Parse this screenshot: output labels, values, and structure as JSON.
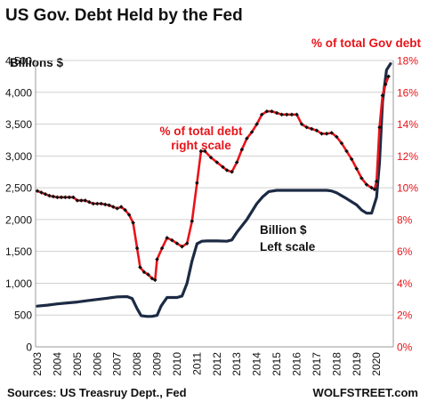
{
  "chart_data": {
    "type": "line",
    "title": "US Gov. Debt Held by the Fed",
    "left_axis_label": "Billions $",
    "right_axis_label": "% of total Gov debt",
    "source": "Sources: US Treasruy Dept., Fed",
    "brand": "WOLFSTREET.com",
    "annotations": {
      "pct_label_line1": "% of total debt",
      "pct_label_line2": "right scale",
      "billions_label_line1": "Billion $",
      "billions_label_line2": "Left scale"
    },
    "left_ylim": [
      0,
      4500
    ],
    "left_ticks": [
      "0",
      "500",
      "1,000",
      "1,500",
      "2,000",
      "2,500",
      "3,000",
      "3,500",
      "4,000",
      "4,500"
    ],
    "right_ylim": [
      0,
      18
    ],
    "right_ticks": [
      "0%",
      "2%",
      "4%",
      "6%",
      "8%",
      "10%",
      "12%",
      "14%",
      "16%",
      "18%"
    ],
    "xlim": [
      2003,
      2020.75
    ],
    "x_ticks": [
      "2003",
      "2004",
      "2005",
      "2006",
      "2007",
      "2008",
      "2009",
      "2010",
      "2011",
      "2012",
      "2013",
      "2014",
      "2015",
      "2016",
      "2017",
      "2018",
      "2019",
      "2020"
    ],
    "grid": true,
    "colors": {
      "billions": "#1c2a44",
      "pct": "#e8141a",
      "marker": "#111111",
      "grid": "#d0d0d0"
    },
    "series": [
      {
        "name": "Billion $",
        "axis": "left",
        "points": [
          [
            2003.0,
            640
          ],
          [
            2003.5,
            655
          ],
          [
            2004.0,
            675
          ],
          [
            2004.5,
            690
          ],
          [
            2005.0,
            705
          ],
          [
            2005.5,
            725
          ],
          [
            2006.0,
            745
          ],
          [
            2006.5,
            765
          ],
          [
            2007.0,
            785
          ],
          [
            2007.5,
            790
          ],
          [
            2007.75,
            760
          ],
          [
            2008.0,
            600
          ],
          [
            2008.2,
            490
          ],
          [
            2008.5,
            478
          ],
          [
            2008.75,
            480
          ],
          [
            2009.0,
            495
          ],
          [
            2009.2,
            640
          ],
          [
            2009.5,
            775
          ],
          [
            2009.75,
            775
          ],
          [
            2010.0,
            775
          ],
          [
            2010.25,
            800
          ],
          [
            2010.5,
            1000
          ],
          [
            2010.75,
            1350
          ],
          [
            2011.0,
            1620
          ],
          [
            2011.25,
            1660
          ],
          [
            2011.5,
            1665
          ],
          [
            2012.0,
            1665
          ],
          [
            2012.5,
            1660
          ],
          [
            2012.75,
            1680
          ],
          [
            2013.0,
            1800
          ],
          [
            2013.5,
            2000
          ],
          [
            2014.0,
            2250
          ],
          [
            2014.3,
            2360
          ],
          [
            2014.6,
            2440
          ],
          [
            2015.0,
            2460
          ],
          [
            2015.5,
            2460
          ],
          [
            2016.0,
            2460
          ],
          [
            2016.5,
            2460
          ],
          [
            2017.0,
            2460
          ],
          [
            2017.5,
            2460
          ],
          [
            2017.75,
            2450
          ],
          [
            2018.0,
            2420
          ],
          [
            2018.5,
            2330
          ],
          [
            2019.0,
            2230
          ],
          [
            2019.25,
            2150
          ],
          [
            2019.5,
            2100
          ],
          [
            2019.75,
            2100
          ],
          [
            2020.0,
            2350
          ],
          [
            2020.15,
            2900
          ],
          [
            2020.3,
            3850
          ],
          [
            2020.5,
            4350
          ],
          [
            2020.7,
            4450
          ]
        ]
      },
      {
        "name": "% of total debt",
        "axis": "right",
        "points": [
          [
            2003.0,
            9.8
          ],
          [
            2003.2,
            9.7
          ],
          [
            2003.4,
            9.6
          ],
          [
            2003.6,
            9.5
          ],
          [
            2003.8,
            9.45
          ],
          [
            2004.0,
            9.4
          ],
          [
            2004.2,
            9.4
          ],
          [
            2004.4,
            9.4
          ],
          [
            2004.6,
            9.4
          ],
          [
            2004.8,
            9.4
          ],
          [
            2005.0,
            9.2
          ],
          [
            2005.2,
            9.2
          ],
          [
            2005.4,
            9.2
          ],
          [
            2005.6,
            9.1
          ],
          [
            2005.8,
            9.0
          ],
          [
            2006.0,
            9.0
          ],
          [
            2006.2,
            9.0
          ],
          [
            2006.4,
            8.95
          ],
          [
            2006.6,
            8.9
          ],
          [
            2006.8,
            8.8
          ],
          [
            2007.0,
            8.7
          ],
          [
            2007.2,
            8.8
          ],
          [
            2007.4,
            8.6
          ],
          [
            2007.6,
            8.3
          ],
          [
            2007.8,
            7.8
          ],
          [
            2008.0,
            6.2
          ],
          [
            2008.15,
            5.0
          ],
          [
            2008.35,
            4.7
          ],
          [
            2008.55,
            4.55
          ],
          [
            2008.75,
            4.3
          ],
          [
            2008.9,
            4.2
          ],
          [
            2009.0,
            5.5
          ],
          [
            2009.25,
            6.2
          ],
          [
            2009.5,
            6.85
          ],
          [
            2009.75,
            6.7
          ],
          [
            2010.0,
            6.5
          ],
          [
            2010.25,
            6.3
          ],
          [
            2010.5,
            6.5
          ],
          [
            2010.75,
            7.9
          ],
          [
            2011.0,
            10.3
          ],
          [
            2011.2,
            12.3
          ],
          [
            2011.4,
            12.3
          ],
          [
            2011.7,
            11.9
          ],
          [
            2012.0,
            11.6
          ],
          [
            2012.3,
            11.3
          ],
          [
            2012.5,
            11.1
          ],
          [
            2012.75,
            11.0
          ],
          [
            2013.0,
            11.6
          ],
          [
            2013.25,
            12.4
          ],
          [
            2013.5,
            13.1
          ],
          [
            2013.75,
            13.5
          ],
          [
            2014.0,
            14.0
          ],
          [
            2014.25,
            14.6
          ],
          [
            2014.5,
            14.8
          ],
          [
            2014.75,
            14.8
          ],
          [
            2015.0,
            14.7
          ],
          [
            2015.25,
            14.6
          ],
          [
            2015.5,
            14.6
          ],
          [
            2015.75,
            14.6
          ],
          [
            2016.0,
            14.6
          ],
          [
            2016.25,
            14.0
          ],
          [
            2016.5,
            13.8
          ],
          [
            2016.75,
            13.7
          ],
          [
            2017.0,
            13.6
          ],
          [
            2017.25,
            13.4
          ],
          [
            2017.5,
            13.4
          ],
          [
            2017.75,
            13.45
          ],
          [
            2018.0,
            13.2
          ],
          [
            2018.25,
            12.8
          ],
          [
            2018.5,
            12.3
          ],
          [
            2018.75,
            11.8
          ],
          [
            2019.0,
            11.2
          ],
          [
            2019.25,
            10.6
          ],
          [
            2019.5,
            10.2
          ],
          [
            2019.75,
            10.0
          ],
          [
            2019.9,
            9.9
          ],
          [
            2020.0,
            10.4
          ],
          [
            2020.15,
            13.8
          ],
          [
            2020.3,
            15.8
          ],
          [
            2020.45,
            16.5
          ],
          [
            2020.6,
            17.0
          ]
        ]
      }
    ]
  }
}
